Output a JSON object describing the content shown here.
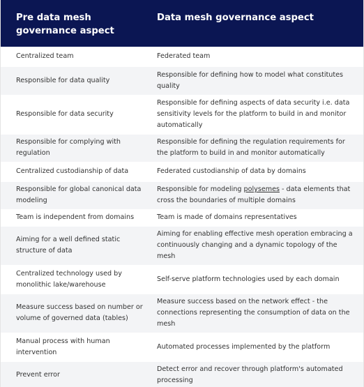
{
  "table": {
    "headers": [
      "Pre data mesh governance aspect",
      "Data mesh governance aspect"
    ],
    "rows": [
      {
        "pre": "Centralized team",
        "mesh": "Federated team"
      },
      {
        "pre": "Responsible for data quality",
        "mesh": "Responsible for defining how to model what constitutes quality"
      },
      {
        "pre": "Responsible for data security",
        "mesh": "Responsible for defining aspects of data security i.e. data sensitivity levels for the platform to build in and monitor automatically"
      },
      {
        "pre": "Responsible for complying with regulation",
        "mesh": "Responsible for defining the regulation requirements for the platform to build in and monitor automatically"
      },
      {
        "pre": "Centralized custodianship of data",
        "mesh": "Federated custodianship of data by domains"
      },
      {
        "pre": "Responsible for global canonical data modeling",
        "mesh_before": "Responsible for modeling ",
        "mesh_link": "polysemes",
        "mesh_after": " - data elements that cross the boundaries of multiple domains"
      },
      {
        "pre": "Team is independent from domains",
        "mesh": "Team is made of domains representatives"
      },
      {
        "pre": "Aiming for a well defined static structure of data",
        "mesh": "Aiming for enabling effective mesh operation embracing a continuously changing and a dynamic topology of the mesh"
      },
      {
        "pre": "Centralized technology used by monolithic lake/warehouse",
        "mesh": "Self-serve platform technologies used by each domain"
      },
      {
        "pre": "Measure success based on number or volume of governed data (tables)",
        "mesh": "Measure success based on the network effect - the connections representing the consumption of data on the mesh"
      },
      {
        "pre": "Manual process with human intervention",
        "mesh": "Automated processes implemented by the platform"
      },
      {
        "pre": "Prevent error",
        "mesh": "Detect error and recover through platform's automated processing"
      }
    ]
  }
}
